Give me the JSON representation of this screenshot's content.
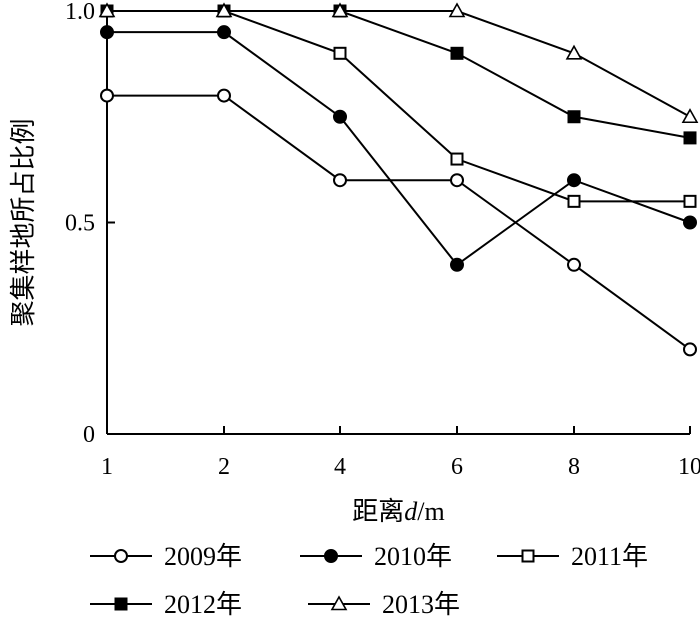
{
  "chart_data": {
    "type": "line",
    "title": "",
    "xlabel_prefix": "距离",
    "xlabel_var": "d",
    "xlabel_unit": "/m",
    "ylabel": "聚集样地所占比例",
    "categories": [
      "1",
      "2",
      "4",
      "6",
      "8",
      "10"
    ],
    "y_ticks": [
      "0",
      "0.5",
      "1.0"
    ],
    "ylim": [
      0,
      1.0
    ],
    "grid": false,
    "legend_position": "bottom",
    "series": [
      {
        "name": "2009年",
        "marker": "circle-open",
        "values": [
          0.8,
          0.8,
          0.6,
          0.6,
          0.4,
          0.2
        ]
      },
      {
        "name": "2010年",
        "marker": "circle-filled",
        "values": [
          0.95,
          0.95,
          0.75,
          0.4,
          0.6,
          0.5
        ]
      },
      {
        "name": "2011年",
        "marker": "square-open",
        "values": [
          1.0,
          1.0,
          0.9,
          0.65,
          0.55,
          0.55
        ]
      },
      {
        "name": "2012年",
        "marker": "square-filled",
        "values": [
          1.0,
          1.0,
          1.0,
          0.9,
          0.75,
          0.7
        ]
      },
      {
        "name": "2013年",
        "marker": "triangle-open",
        "values": [
          1.0,
          1.0,
          1.0,
          1.0,
          0.9,
          0.75
        ]
      }
    ]
  }
}
